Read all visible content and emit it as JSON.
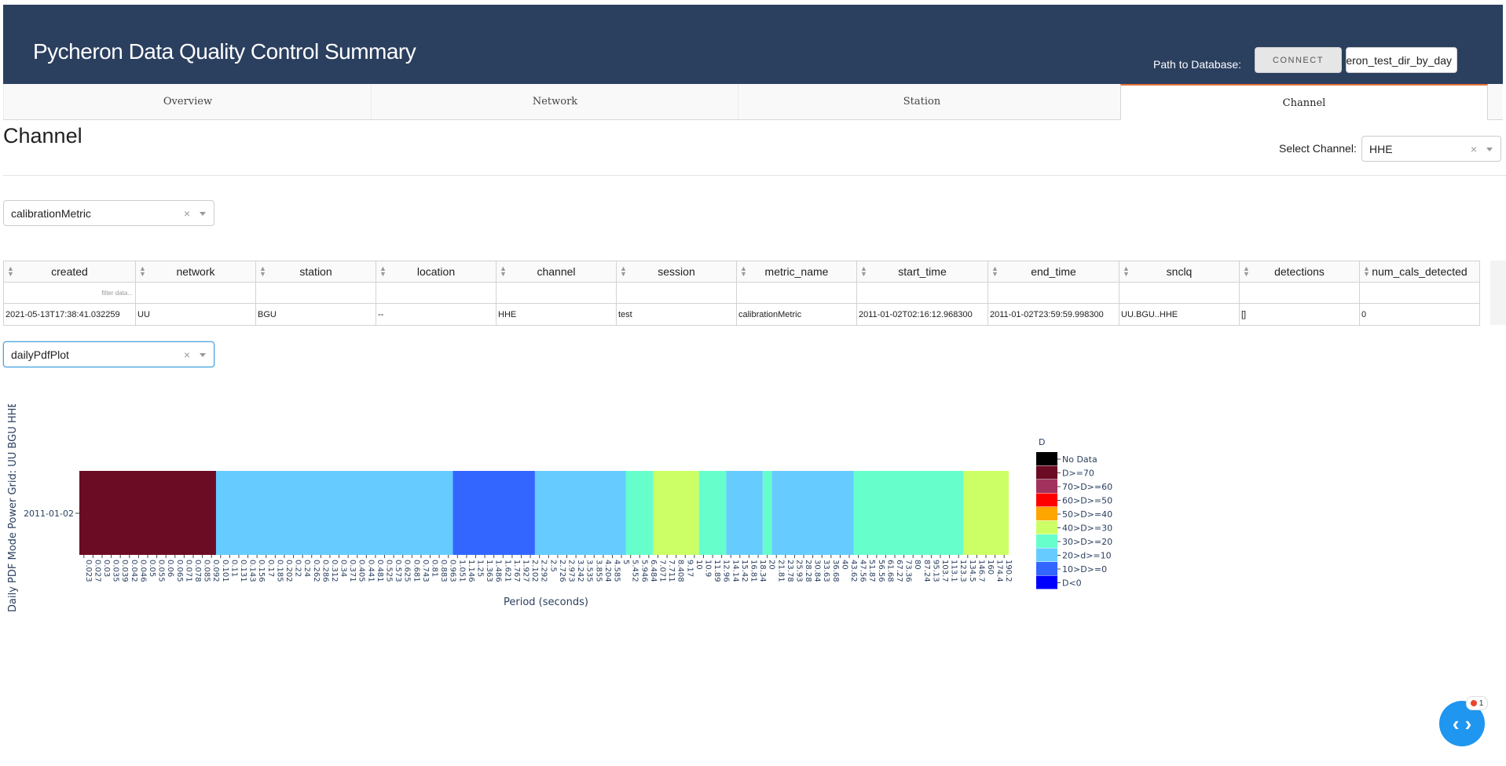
{
  "header": {
    "title": "Pycheron Data Quality Control Summary",
    "db_label": "Path to Database:",
    "connect_label": "CONNECT",
    "path_value": "pycheron_test_dir_by_day"
  },
  "tabs": [
    {
      "label": "Overview"
    },
    {
      "label": "Network"
    },
    {
      "label": "Station"
    },
    {
      "label": "Channel"
    }
  ],
  "active_tab": "Channel",
  "page": {
    "title": "Channel",
    "select_channel_label": "Select Channel:",
    "selected_channel": "HHE",
    "metric_select": "calibrationMetric",
    "plot_select": "dailyPdfPlot"
  },
  "table": {
    "columns": [
      "created",
      "network",
      "station",
      "location",
      "channel",
      "session",
      "metric_name",
      "start_time",
      "end_time",
      "snclq",
      "detections",
      "num_cals_detected"
    ],
    "filter_placeholder": "filter data...",
    "rows": [
      [
        "2021-05-13T17:38:41.032259",
        "UU",
        "BGU",
        "--",
        "HHE",
        "test",
        "calibrationMetric",
        "2011-01-02T02:16:12.968300",
        "2011-01-02T23:59:59.998300",
        "UU.BGU..HHE",
        "[]",
        "0"
      ]
    ]
  },
  "chart_data": {
    "type": "heatmap",
    "title": "",
    "ylabel": "Daily PDF Mode Power Grid: UU BGU HHE",
    "xlabel": "Period (seconds)",
    "y_categories": [
      "2011-01-02"
    ],
    "x_tick_labels": [
      "0.023",
      "0.027",
      "0.03",
      "0.035",
      "0.039",
      "0.042",
      "0.046",
      "0.05",
      "0.055",
      "0.06",
      "0.065",
      "0.071",
      "0.078",
      "0.085",
      "0.092",
      "0.101",
      "0.11",
      "0.131",
      "0.143",
      "0.156",
      "0.17",
      "0.185",
      "0.202",
      "0.22",
      "0.24",
      "0.262",
      "0.286",
      "0.312",
      "0.34",
      "0.371",
      "0.405",
      "0.441",
      "0.481",
      "0.525",
      "0.573",
      "0.625",
      "0.681",
      "0.743",
      "0.81",
      "0.883",
      "0.963",
      "1.051",
      "1.146",
      "1.25",
      "1.363",
      "1.486",
      "1.621",
      "1.767",
      "1.927",
      "2.102",
      "2.292",
      "2.5",
      "2.726",
      "2.973",
      "3.242",
      "3.535",
      "3.855",
      "4.204",
      "4.585",
      "5",
      "5.452",
      "5.946",
      "6.484",
      "7.071",
      "7.711",
      "8.408",
      "9.17",
      "10",
      "10.9",
      "11.89",
      "12.96",
      "14.14",
      "15.42",
      "16.81",
      "18.34",
      "20",
      "21.81",
      "23.78",
      "25.93",
      "28.28",
      "30.84",
      "33.63",
      "36.68",
      "40",
      "43.62",
      "47.56",
      "51.87",
      "56.56",
      "61.68",
      "67.27",
      "73.36",
      "80",
      "87.24",
      "95.13",
      "103.7",
      "113.1",
      "123.3",
      "134.5",
      "146.7",
      "160",
      "174.4",
      "190.2"
    ],
    "bands": [
      {
        "from": "0.023",
        "to": "0.101",
        "class": "D>=70"
      },
      {
        "from": "0.101",
        "to": "1.051",
        "class": "20>d>=10"
      },
      {
        "from": "1.051",
        "to": "2.292",
        "class": "10>D>=0"
      },
      {
        "from": "2.292",
        "to": "5.452",
        "class": "20>d>=10"
      },
      {
        "from": "5.452",
        "to": "7.071",
        "class": "30>D>=20"
      },
      {
        "from": "7.071",
        "to": "10.9",
        "class": "40>D>=30"
      },
      {
        "from": "10.9",
        "to": "14.14",
        "class": "30>D>=20"
      },
      {
        "from": "14.14",
        "to": "20",
        "class": "20>d>=10"
      },
      {
        "from": "20",
        "to": "21.81",
        "class": "30>D>=20"
      },
      {
        "from": "21.81",
        "to": "47.56",
        "class": "20>d>=10"
      },
      {
        "from": "47.56",
        "to": "134.5",
        "class": "30>D>=20"
      },
      {
        "from": "134.5",
        "to": "190.2",
        "class": "40>D>=30"
      }
    ],
    "legend_title": "D",
    "legend": [
      {
        "label": "No Data",
        "color": "#000000"
      },
      {
        "label": "D>=70",
        "color": "#6b0b24"
      },
      {
        "label": "70>D>=60",
        "color": "#a3315e"
      },
      {
        "label": "60>D>=50",
        "color": "#ff0000"
      },
      {
        "label": "50>D>=40",
        "color": "#ffa500"
      },
      {
        "label": "40>D>=30",
        "color": "#ccff66"
      },
      {
        "label": "30>D>=20",
        "color": "#66ffcc"
      },
      {
        "label": "20>d>=10",
        "color": "#66ccff"
      },
      {
        "label": "10>D>=0",
        "color": "#3366ff"
      },
      {
        "label": "D<0",
        "color": "#0000ff"
      }
    ]
  },
  "fab": {
    "badge_count": "1"
  }
}
